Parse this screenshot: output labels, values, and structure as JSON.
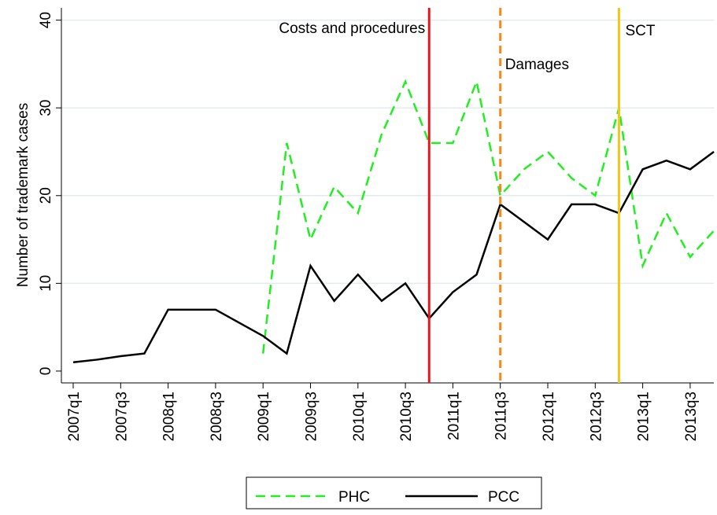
{
  "chart_data": {
    "type": "line",
    "y_label": "Number of trademark cases",
    "categories": [
      "2007q1",
      null,
      "2007q3",
      null,
      "2008q1",
      null,
      "2008q3",
      null,
      "2009q1",
      null,
      "2009q3",
      null,
      "2010q1",
      null,
      "2010q3",
      null,
      "2011q1",
      null,
      "2011q3",
      null,
      "2012q1",
      null,
      "2012q3",
      null,
      "2013q1",
      null,
      "2013q3",
      null
    ],
    "series": [
      {
        "name": "PHC",
        "color": "#22ee22",
        "dash": true,
        "values": [
          null,
          null,
          null,
          null,
          null,
          null,
          null,
          null,
          2,
          26,
          15,
          21,
          18,
          27,
          33,
          26,
          26,
          33,
          20,
          23,
          25,
          22,
          20,
          30,
          12,
          18,
          13,
          16
        ]
      },
      {
        "name": "PCC",
        "color": "#000000",
        "dash": false,
        "values": [
          1,
          1.3,
          1.7,
          2,
          7,
          7,
          7,
          5.5,
          4,
          2,
          12,
          8,
          11,
          8,
          10,
          6,
          9,
          11,
          19,
          17,
          15,
          19,
          19,
          18,
          23,
          24,
          23,
          25
        ]
      }
    ],
    "events": [
      {
        "text": "Costs and procedures",
        "at": 15,
        "color": "#e8161a",
        "dash": false
      },
      {
        "text": "Damages",
        "at": 18,
        "color": "#f28a1e",
        "dash": true
      },
      {
        "text": "SCT",
        "at": 23,
        "color": "#f5c518",
        "dash": false
      }
    ],
    "ylim": [
      -1.35,
      41.4
    ],
    "yticks": [
      0,
      10,
      20,
      30,
      40
    ],
    "grid": true
  }
}
